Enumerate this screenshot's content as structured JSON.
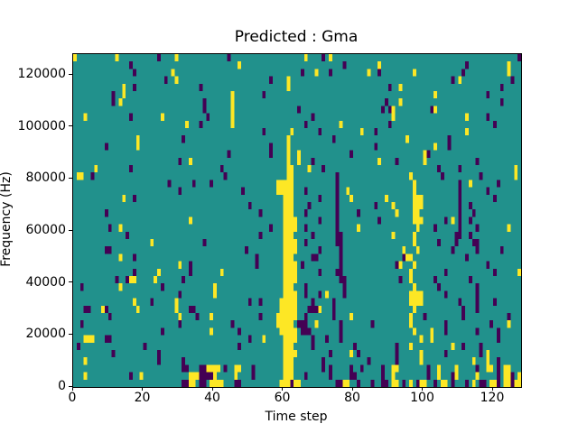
{
  "chart_data": {
    "type": "heatmap",
    "title": "Predicted : Gma",
    "xlabel": "Time step",
    "ylabel": "Frequency (Hz)",
    "xlim": [
      0,
      128
    ],
    "ylim": [
      0,
      128000
    ],
    "x_ticks": [
      0,
      20,
      40,
      60,
      80,
      100,
      120
    ],
    "y_ticks": [
      0,
      20000,
      40000,
      60000,
      80000,
      100000,
      120000
    ],
    "legend": "none",
    "grid_lines": "off",
    "colormap": {
      "bg": "#21918c",
      "y": "#fde725",
      "p": "#440154"
    },
    "cell_legend": {
      "bg": "mid value (teal)",
      "y": "high value (yellow)",
      "p": "low value (dark purple)"
    },
    "grid": {
      "cols": 128,
      "rows": 45,
      "row_order": "top-to-bottom (row 0 = 128000 Hz, row 44 = 0 Hz)",
      "cells": [
        {
          "y": [
            0,
            12,
            29,
            66,
            73
          ],
          "p": [
            24,
            44,
            71,
            127
          ]
        },
        {
          "y": [
            47,
            87,
            124
          ],
          "p": [
            16,
            77,
            112
          ]
        },
        {
          "y": [
            28,
            69,
            84,
            97,
            124
          ],
          "p": [
            17,
            65,
            73,
            87,
            111
          ]
        },
        {
          "y": [
            29,
            61,
            110
          ],
          "p": [
            26,
            56,
            108,
            125
          ]
        },
        {
          "y": [
            14,
            61,
            93
          ],
          "p": [
            17,
            36,
            90,
            122
          ]
        },
        {
          "y": [
            14,
            45,
            103
          ],
          "p": [
            11,
            54,
            118
          ]
        },
        {
          "y": [
            13,
            45,
            93
          ],
          "p": [
            11,
            37,
            89,
            122
          ]
        },
        {
          "y": [
            45,
            91,
            103
          ],
          "p": [
            37,
            64,
            88,
            90,
            102
          ]
        },
        {
          "y": [
            3,
            25,
            45,
            91,
            112
          ],
          "p": [
            16,
            38,
            68,
            118
          ]
        },
        {
          "y": [
            32,
            45,
            76
          ],
          "p": [
            36,
            66,
            90,
            120
          ]
        },
        {
          "y": [
            62,
            82,
            112
          ],
          "p": [
            54,
            70,
            86
          ]
        },
        {
          "y": [
            18,
            61,
            95
          ],
          "p": [
            31,
            74,
            107
          ]
        },
        {
          "y": [
            18,
            61,
            103
          ],
          "p": [
            9,
            56,
            86,
            107
          ]
        },
        {
          "y": [
            61,
            64,
            100
          ],
          "p": [
            44,
            56,
            79,
            101
          ]
        },
        {
          "y": [
            33,
            61,
            64,
            87,
            100
          ],
          "p": [
            30,
            68,
            92,
            115
          ]
        },
        {
          "y": [
            6,
            [
              61,
              62
            ],
            67,
            126
          ],
          "p": [
            16,
            42,
            71,
            104,
            110
          ]
        },
        {
          "y": [
            [
              1,
              2
            ],
            [
              61,
              62
            ],
            96,
            126
          ],
          "p": [
            5,
            43,
            75,
            105,
            116
          ]
        },
        {
          "y": [
            [
              58,
              62
            ],
            97,
            113
          ],
          "p": [
            27,
            34,
            39,
            75,
            110,
            121
          ]
        },
        {
          "y": [
            [
              58,
              62
            ],
            78,
            97
          ],
          "p": [
            30,
            48,
            66,
            75,
            110,
            118
          ]
        },
        {
          "y": [
            14,
            [
              60,
              62
            ],
            79,
            89,
            [
              97,
              99
            ]
          ],
          "p": [
            17,
            70,
            75,
            110,
            120
          ]
        },
        {
          "y": [
            [
              60,
              62
            ],
            91,
            [
              97,
              99
            ]
          ],
          "p": [
            50,
            67,
            75,
            86,
            110,
            113
          ]
        },
        {
          "y": [
            [
              60,
              62
            ],
            92,
            [
              97,
              98
            ]
          ],
          "p": [
            9,
            53,
            66,
            75,
            81,
            110,
            114
          ]
        },
        {
          "y": [
            33,
            [
              60,
              63
            ],
            [
              97,
              99
            ],
            108
          ],
          "p": [
            70,
            75,
            87,
            106,
            110,
            113
          ]
        },
        {
          "y": [
            13,
            [
              60,
              63
            ],
            81,
            98,
            124
          ],
          "p": [
            10,
            56,
            66,
            75,
            103,
            110,
            115
          ]
        },
        {
          "y": [
            [
              60,
              62
            ],
            91,
            97
          ],
          "p": [
            15,
            53,
            68,
            [
              75,
              76
            ],
            109,
            110,
            113
          ]
        },
        {
          "y": [
            22,
            [
              60,
              63
            ],
            97
          ],
          "p": [
            37,
            66,
            [
              75,
              76
            ],
            104,
            109,
            [
              114,
              115
            ]
          ]
        },
        {
          "y": [
            [
              60,
              63
            ],
            94,
            98
          ],
          "p": [
            [
              9,
              10
            ],
            49,
            70,
            76,
            108,
            115,
            122
          ]
        },
        {
          "y": [
            13,
            [
              60,
              62
            ],
            [
              95,
              96
            ]
          ],
          "p": [
            17,
            52,
            [
              68,
              69
            ],
            76,
            94,
            112
          ]
        },
        {
          "y": [
            30,
            [
              60,
              63
            ],
            93,
            97
          ],
          "p": [
            33,
            52,
            65,
            76,
            92,
            118
          ]
        },
        {
          "y": [
            24,
            42,
            [
              60,
              63
            ],
            96,
            127
          ],
          "p": [
            17,
            33,
            70,
            [
              75,
              76
            ],
            106,
            120
          ]
        },
        {
          "y": [
            [
              16,
              17
            ],
            23,
            [
              60,
              63
            ],
            96
          ],
          "p": [
            12,
            15,
            31,
            [
              76,
              77
            ],
            93,
            103,
            113
          ]
        },
        {
          "y": [
            13,
            40,
            [
              60,
              62
            ],
            97
          ],
          "p": [
            2,
            25,
            66,
            77,
            104,
            115
          ]
        },
        {
          "y": [
            40,
            [
              60,
              63
            ],
            72,
            [
              96,
              99
            ]
          ],
          "p": [
            30,
            66,
            70,
            77,
            106,
            115
          ]
        },
        {
          "y": [
            17,
            29,
            [
              59,
              63
            ],
            [
              96,
              99
            ]
          ],
          "p": [
            22,
            50,
            53,
            68,
            74,
            110,
            115,
            120
          ]
        },
        {
          "y": [
            8,
            18,
            29,
            [
              59,
              63
            ],
            70,
            97
          ],
          "p": [
            [
              3,
              4
            ],
            9,
            [
              33,
              34
            ],
            [
              67,
              69
            ],
            74,
            111,
            115
          ]
        },
        {
          "y": [
            30,
            39,
            [
              58,
              63
            ],
            79,
            96
          ],
          "p": [
            10,
            35,
            53,
            66,
            74,
            100,
            111,
            124
          ]
        },
        {
          "y": [
            [
              58,
              62
            ],
            69,
            96,
            124
          ],
          "p": [
            2,
            30,
            45,
            [
              64,
              66
            ],
            76,
            85,
            106,
            119
          ]
        },
        {
          "y": [
            39,
            [
              59,
              63
            ],
            97,
            102
          ],
          "p": [
            25,
            47,
            [
              65,
              67
            ],
            76,
            106,
            115,
            121
          ]
        },
        {
          "y": [
            [
              3,
              5
            ],
            54,
            [
              60,
              63
            ],
            99,
            102
          ],
          "p": [
            [
              9,
              10
            ],
            50,
            68,
            72,
            76,
            121
          ]
        },
        {
          "y": [
            [
              60,
              62
            ],
            96,
            108
          ],
          "p": [
            1,
            20,
            47,
            68,
            80,
            92,
            111,
            116
          ]
        },
        {
          "y": [
            [
              60,
              63
            ],
            79,
            99,
            118
          ],
          "p": [
            11,
            24,
            73,
            81,
            92,
            106,
            116
          ]
        },
        {
          "y": [
            3,
            [
              60,
              62
            ],
            99,
            114,
            118
          ],
          "p": [
            24,
            31,
            71,
            84,
            92,
            121
          ]
        },
        {
          "y": [
            [
              38,
              41
            ],
            [
              46,
              47
            ],
            [
              60,
              62
            ],
            [
              91,
              92
            ],
            104,
            109,
            [
              118,
              119
            ],
            [
              123,
              124
            ]
          ],
          "p": [
            [
              31,
              32
            ],
            [
              36,
              37
            ],
            43,
            51,
            71,
            73,
            79,
            82,
            88,
            101,
            115,
            121
          ]
        },
        {
          "y": [
            3,
            19,
            [
              33,
              35
            ],
            [
              38,
              40
            ],
            46,
            [
              60,
              62
            ],
            91,
            104,
            109,
            115,
            [
              123,
              124
            ],
            127
          ],
          "p": [
            16,
            [
              36,
              39
            ],
            51,
            66,
            73,
            [
              79,
              80
            ],
            88,
            101,
            108,
            121,
            125
          ]
        },
        {
          "y": [
            [
              33,
              34
            ],
            [
              39,
              42
            ],
            [
              59,
              61
            ],
            [
              63,
              64
            ],
            [
              77,
              78
            ],
            [
              91,
              92
            ],
            96,
            [
              99,
              100
            ],
            [
              105,
              106
            ],
            114,
            [
              119,
              120
            ],
            [
              123,
              124
            ],
            [
              126,
              127
            ]
          ],
          "p": [
            [
              31,
              32
            ],
            [
              36,
              37
            ],
            [
              46,
              47
            ],
            62,
            [
              75,
              76
            ],
            81,
            85,
            [
              88,
              89
            ],
            94,
            98,
            103,
            108,
            112,
            [
              116,
              117
            ],
            121,
            125
          ]
        }
      ]
    }
  }
}
